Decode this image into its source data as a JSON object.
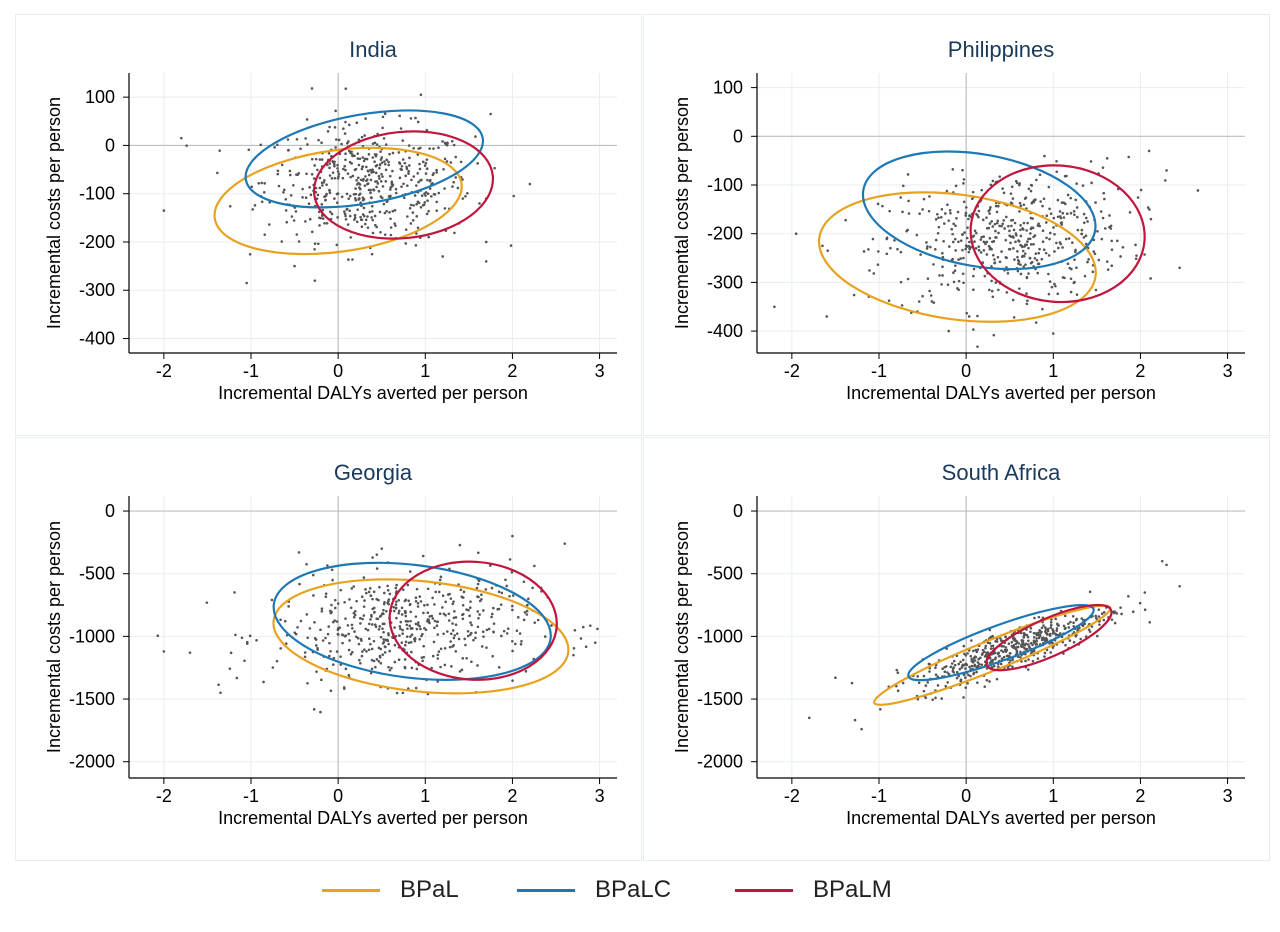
{
  "chart_data": [
    {
      "type": "scatter",
      "title": "India",
      "xlabel": "Incremental DALYs averted per person",
      "ylabel": "Incremental costs per person",
      "xlim": [
        -2.4,
        3.2
      ],
      "ylim": [
        -430,
        150
      ],
      "xticks": [
        -2,
        -1,
        0,
        1,
        2,
        3
      ],
      "yticks": [
        100,
        0,
        -100,
        -200,
        -300,
        -400
      ],
      "grid": true,
      "cloud": {
        "cx": 0.35,
        "cy": -80,
        "sx": 0.6,
        "sy": 60,
        "rho": -0.05,
        "n": 520
      },
      "outliers": [
        [
          -2.0,
          -135
        ],
        [
          -1.8,
          15
        ],
        [
          -1.05,
          -285
        ],
        [
          -0.3,
          118
        ],
        [
          0.95,
          105
        ],
        [
          1.75,
          65
        ],
        [
          1.7,
          -200
        ],
        [
          2.2,
          -80
        ],
        [
          -0.5,
          -250
        ],
        [
          1.2,
          -230
        ]
      ],
      "ellipses": [
        {
          "series": "BPaL",
          "cx": 0,
          "cy": -115,
          "rx": 1.43,
          "ry": 105,
          "angle": -8
        },
        {
          "series": "BPaLC",
          "cx": 0.3,
          "cy": -28,
          "rx": 1.38,
          "ry": 92,
          "angle": -10
        },
        {
          "series": "BPaLM",
          "cx": 0.75,
          "cy": -82,
          "rx": 1.03,
          "ry": 110,
          "angle": -6
        }
      ]
    },
    {
      "type": "scatter",
      "title": "Philippines",
      "xlabel": "Incremental DALYs averted per person",
      "ylabel": "Incremental costs per person",
      "xlim": [
        -2.4,
        3.2
      ],
      "ylim": [
        -445,
        130
      ],
      "xticks": [
        -2,
        -1,
        0,
        1,
        2,
        3
      ],
      "yticks": [
        100,
        0,
        -100,
        -200,
        -300,
        -400
      ],
      "grid": true,
      "cloud": {
        "cx": 0.45,
        "cy": -210,
        "sx": 0.7,
        "sy": 70,
        "rho": 0.2,
        "n": 520
      },
      "outliers": [
        [
          -2.2,
          -350
        ],
        [
          -1.95,
          -200
        ],
        [
          2.45,
          -270
        ],
        [
          2.3,
          -70
        ],
        [
          2.1,
          -30
        ],
        [
          -0.2,
          -400
        ],
        [
          1.0,
          -405
        ],
        [
          -1.6,
          -370
        ]
      ],
      "ellipses": [
        {
          "series": "BPaL",
          "cx": -0.1,
          "cy": -248,
          "rx": 1.6,
          "ry": 128,
          "angle": 8
        },
        {
          "series": "BPaLC",
          "cx": 0.15,
          "cy": -152,
          "rx": 1.35,
          "ry": 115,
          "angle": 10
        },
        {
          "series": "BPaLM",
          "cx": 1.05,
          "cy": -200,
          "rx": 1.0,
          "ry": 140,
          "angle": 5
        }
      ]
    },
    {
      "type": "scatter",
      "title": "Georgia",
      "xlabel": "Incremental DALYs averted per person",
      "ylabel": "Incremental costs per person",
      "xlim": [
        -2.4,
        3.2
      ],
      "ylim": [
        -2130,
        120
      ],
      "xticks": [
        -2,
        -1,
        0,
        1,
        2,
        3
      ],
      "yticks": [
        0,
        -500,
        -1000,
        -1500,
        -2000
      ],
      "grid": true,
      "cloud": {
        "cx": 0.75,
        "cy": -930,
        "sx": 0.75,
        "sy": 220,
        "rho": 0.12,
        "n": 540
      },
      "outliers": [
        [
          -2.0,
          -1120
        ],
        [
          -1.7,
          -1130
        ],
        [
          -1.35,
          -1450
        ],
        [
          2.6,
          -260
        ],
        [
          2.95,
          -1050
        ],
        [
          2.0,
          -200
        ],
        [
          -0.45,
          -330
        ],
        [
          0.5,
          -300
        ],
        [
          2.7,
          -1150
        ]
      ],
      "ellipses": [
        {
          "series": "BPaL",
          "cx": 0.95,
          "cy": -1000,
          "rx": 1.7,
          "ry": 440,
          "angle": 6
        },
        {
          "series": "BPaLC",
          "cx": 0.85,
          "cy": -880,
          "rx": 1.6,
          "ry": 450,
          "angle": 7
        },
        {
          "series": "BPaLM",
          "cx": 1.55,
          "cy": -875,
          "rx": 0.96,
          "ry": 470,
          "angle": 4
        }
      ]
    },
    {
      "type": "scatter",
      "title": "South Africa",
      "xlabel": "Incremental DALYs averted per person",
      "ylabel": "Incremental costs per person",
      "xlim": [
        -2.4,
        3.2
      ],
      "ylim": [
        -2130,
        120
      ],
      "xticks": [
        -2,
        -1,
        0,
        1,
        2,
        3
      ],
      "yticks": [
        0,
        -500,
        -1000,
        -1500,
        -2000
      ],
      "grid": true,
      "cloud": {
        "cx": 0.55,
        "cy": -1090,
        "sx": 0.55,
        "sy": 160,
        "rho": 0.85,
        "n": 520
      },
      "outliers": [
        [
          -1.8,
          -1650
        ],
        [
          -1.2,
          -1740
        ],
        [
          2.25,
          -400
        ],
        [
          2.3,
          -430
        ],
        [
          2.45,
          -600
        ],
        [
          2.05,
          -650
        ],
        [
          -1.5,
          -1330
        ]
      ],
      "ellipses": [
        {
          "series": "BPaL",
          "cx": 0.3,
          "cy": -1150,
          "rx": 1.46,
          "ry": 120,
          "angle": -22
        },
        {
          "series": "BPaLC",
          "cx": 0.4,
          "cy": -1050,
          "rx": 1.13,
          "ry": 140,
          "angle": -20
        },
        {
          "series": "BPaLM",
          "cx": 0.95,
          "cy": -1010,
          "rx": 0.78,
          "ry": 150,
          "angle": -24
        }
      ]
    }
  ],
  "legend": {
    "items": [
      {
        "label": "BPaL",
        "color": "#e8a21e"
      },
      {
        "label": "BPaLC",
        "color": "#1d78b4"
      },
      {
        "label": "BPaLM",
        "color": "#c0153d"
      }
    ]
  },
  "colors": {
    "point": "#555555",
    "grid": "#e7eef3",
    "zero_line": "#bfbfbf",
    "axis": "#000000",
    "title": "#1a3a5c"
  }
}
